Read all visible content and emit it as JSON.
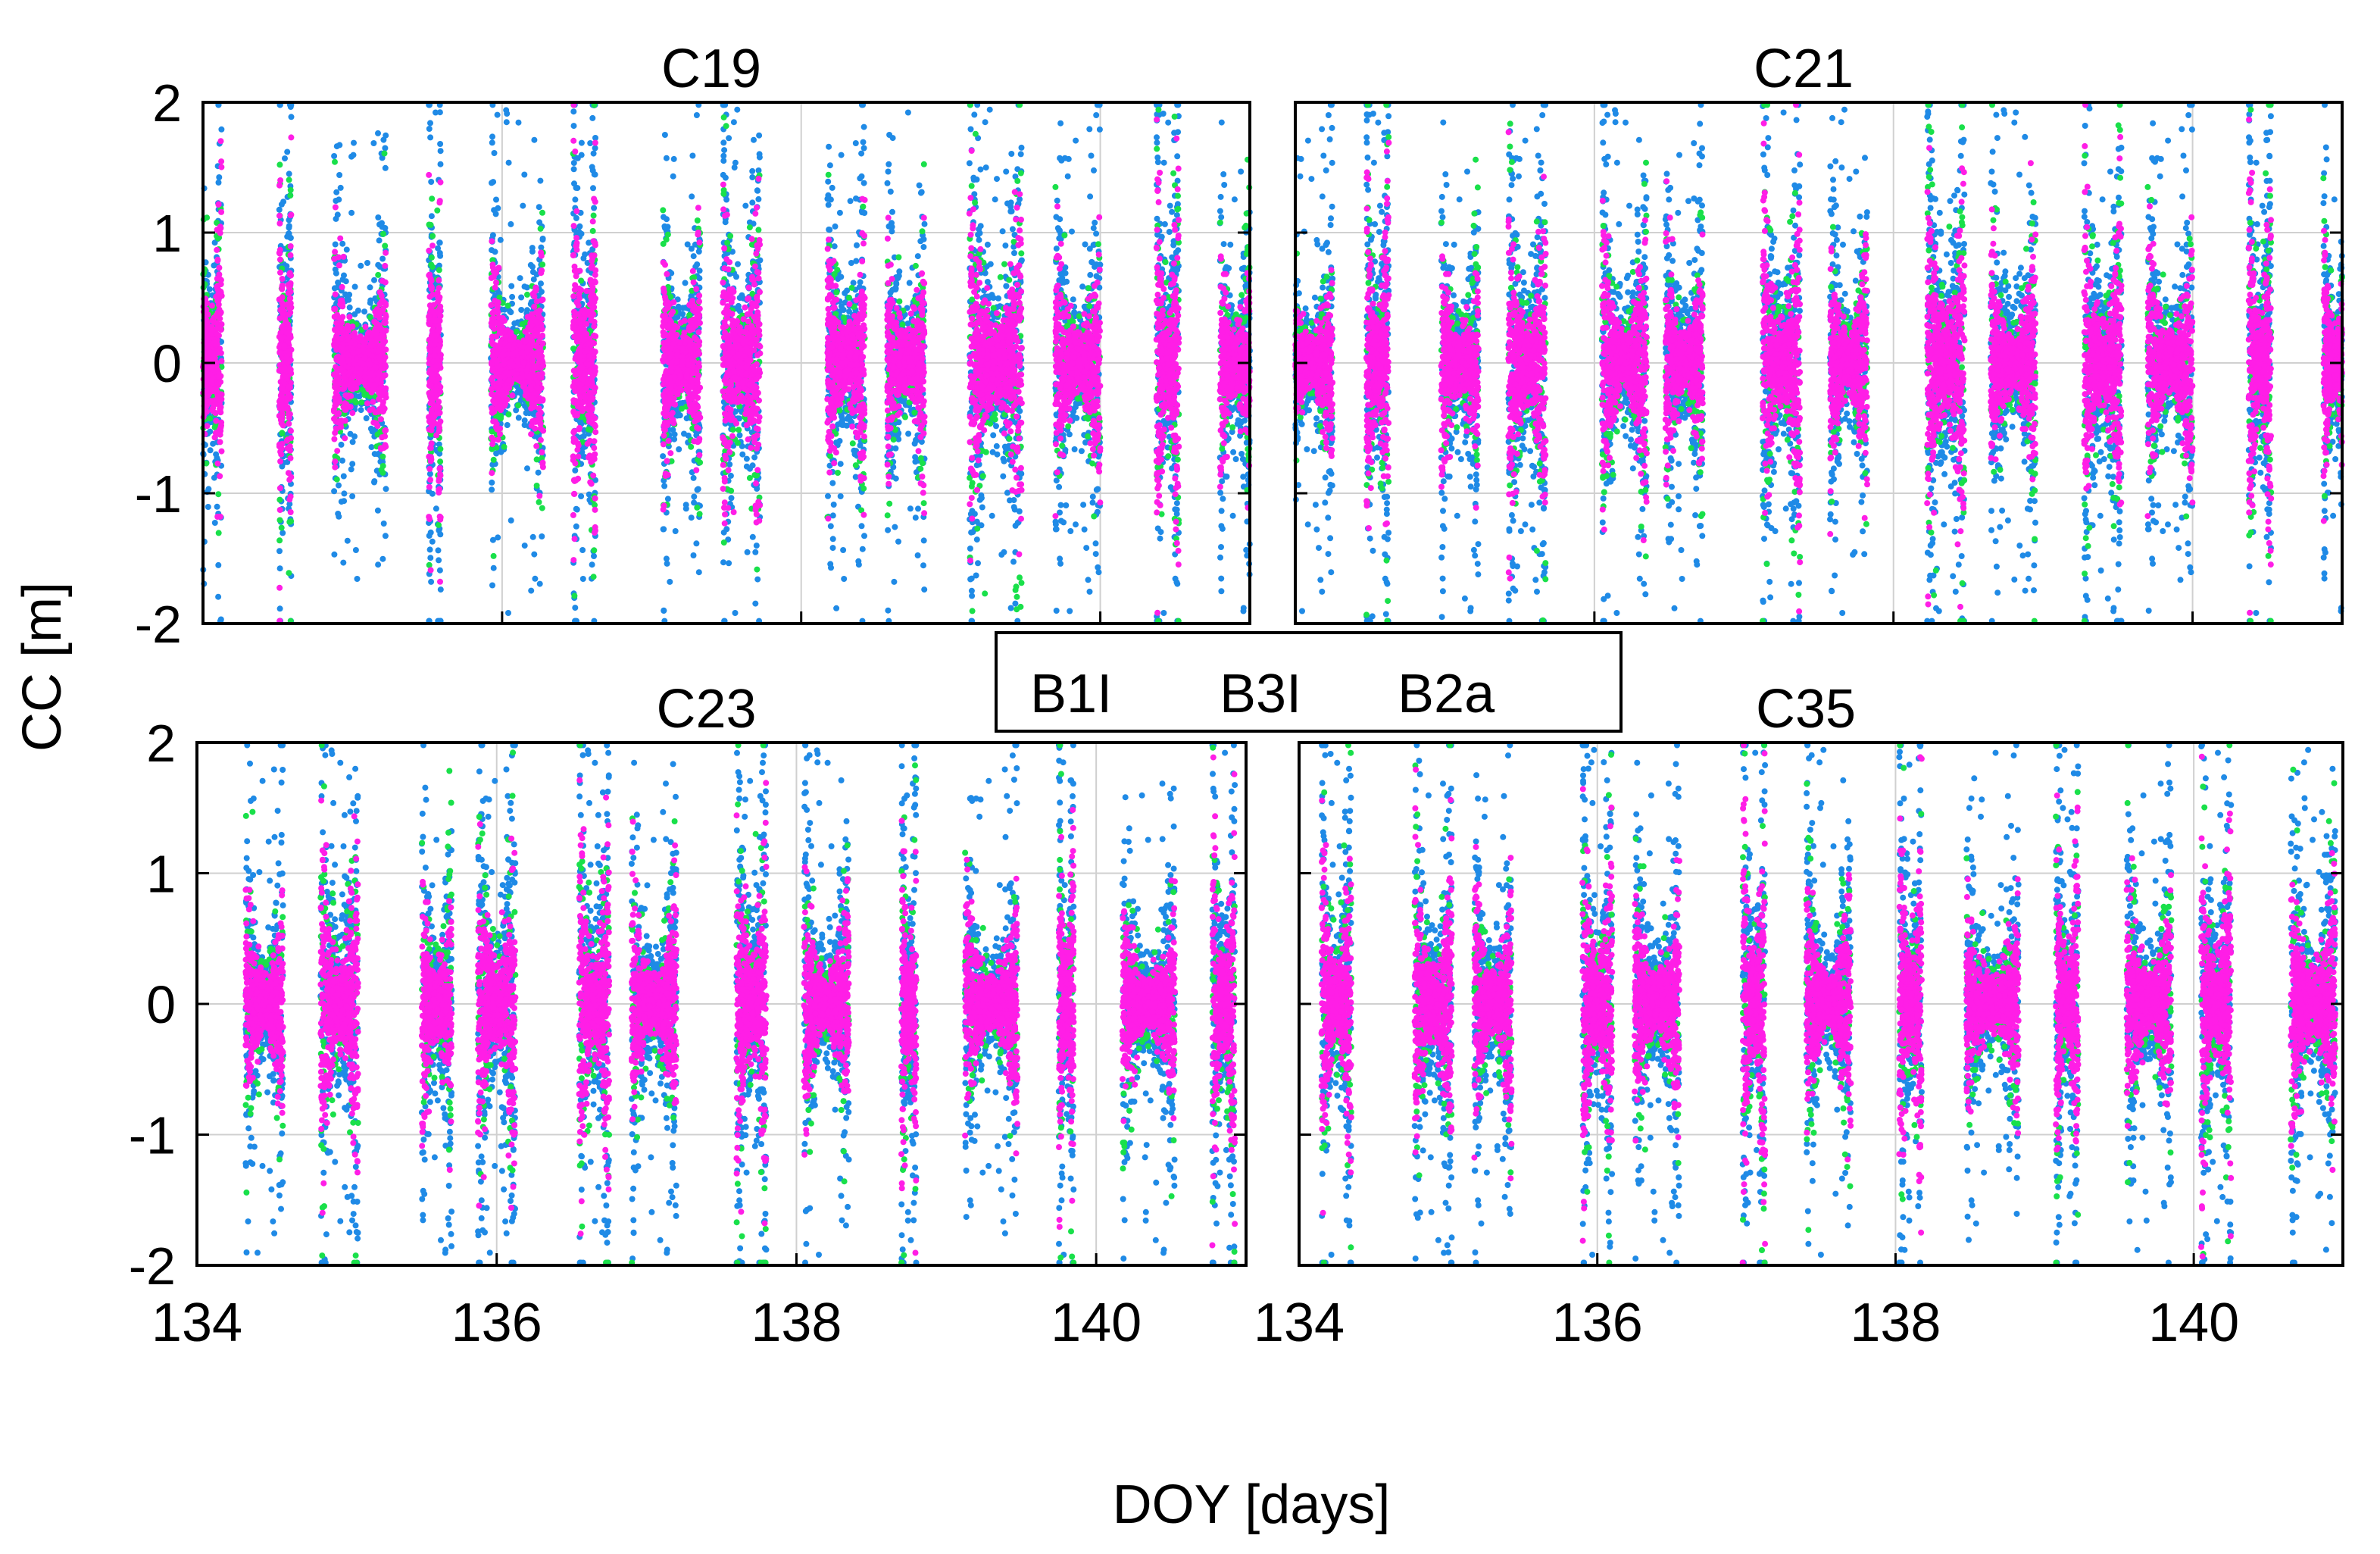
{
  "figure": {
    "ylabel": "CC [m]",
    "xlabel": "DOY [days]"
  },
  "legend": {
    "entries": [
      {
        "label": "B1I",
        "color": "#1f8ae6"
      },
      {
        "label": "B3I",
        "color": "#19e04a"
      },
      {
        "label": "B2a",
        "color": "#ff1ee6"
      }
    ]
  },
  "chart_data": [
    {
      "type": "scatter",
      "title": "C19",
      "xlim": [
        134,
        141
      ],
      "ylim": [
        -2,
        2
      ],
      "xticks": [
        134,
        136,
        138,
        140
      ],
      "yticks": [
        -2,
        -1,
        0,
        1,
        2
      ],
      "grid": true,
      "passes": [
        {
          "center": 134.05,
          "duration": 0.15,
          "spread": 0.55
        },
        {
          "center": 134.55,
          "duration": 0.08,
          "spread": 0.55
        },
        {
          "center": 135.05,
          "duration": 0.35,
          "spread": 0.3
        },
        {
          "center": 135.55,
          "duration": 0.08,
          "spread": 0.6
        },
        {
          "center": 136.1,
          "duration": 0.35,
          "spread": 0.3
        },
        {
          "center": 136.55,
          "duration": 0.15,
          "spread": 0.6
        },
        {
          "center": 137.2,
          "duration": 0.25,
          "spread": 0.35
        },
        {
          "center": 137.6,
          "duration": 0.25,
          "spread": 0.5
        },
        {
          "center": 138.3,
          "duration": 0.25,
          "spread": 0.4
        },
        {
          "center": 138.7,
          "duration": 0.25,
          "spread": 0.35
        },
        {
          "center": 139.3,
          "duration": 0.35,
          "spread": 0.5
        },
        {
          "center": 139.85,
          "duration": 0.3,
          "spread": 0.35
        },
        {
          "center": 140.45,
          "duration": 0.15,
          "spread": 0.6
        },
        {
          "center": 140.9,
          "duration": 0.2,
          "spread": 0.35
        }
      ]
    },
    {
      "type": "scatter",
      "title": "C21",
      "xlim": [
        134,
        141
      ],
      "ylim": [
        -2,
        2
      ],
      "xticks": [
        134,
        136,
        138,
        140
      ],
      "yticks": [
        -2,
        -1,
        0,
        1,
        2
      ],
      "grid": true,
      "passes": [
        {
          "center": 134.1,
          "duration": 0.3,
          "spread": 0.3
        },
        {
          "center": 134.55,
          "duration": 0.15,
          "spread": 0.6
        },
        {
          "center": 135.1,
          "duration": 0.25,
          "spread": 0.35
        },
        {
          "center": 135.55,
          "duration": 0.25,
          "spread": 0.5
        },
        {
          "center": 136.2,
          "duration": 0.3,
          "spread": 0.4
        },
        {
          "center": 136.6,
          "duration": 0.25,
          "spread": 0.35
        },
        {
          "center": 137.25,
          "duration": 0.25,
          "spread": 0.5
        },
        {
          "center": 137.7,
          "duration": 0.25,
          "spread": 0.35
        },
        {
          "center": 138.35,
          "duration": 0.25,
          "spread": 0.6
        },
        {
          "center": 138.8,
          "duration": 0.3,
          "spread": 0.35
        },
        {
          "center": 139.4,
          "duration": 0.25,
          "spread": 0.5
        },
        {
          "center": 139.85,
          "duration": 0.3,
          "spread": 0.35
        },
        {
          "center": 140.45,
          "duration": 0.15,
          "spread": 0.6
        },
        {
          "center": 140.95,
          "duration": 0.15,
          "spread": 0.4
        }
      ]
    },
    {
      "type": "scatter",
      "title": "C23",
      "xlim": [
        134,
        141
      ],
      "ylim": [
        -2,
        2
      ],
      "xticks": [
        134,
        136,
        138,
        140
      ],
      "yticks": [
        -2,
        -1,
        0,
        1,
        2
      ],
      "grid": true,
      "passes": [
        {
          "center": 134.45,
          "duration": 0.25,
          "spread": 0.35
        },
        {
          "center": 134.95,
          "duration": 0.25,
          "spread": 0.5
        },
        {
          "center": 135.6,
          "duration": 0.2,
          "spread": 0.4
        },
        {
          "center": 136.0,
          "duration": 0.25,
          "spread": 0.5
        },
        {
          "center": 136.65,
          "duration": 0.2,
          "spread": 0.55
        },
        {
          "center": 137.05,
          "duration": 0.3,
          "spread": 0.35
        },
        {
          "center": 137.7,
          "duration": 0.2,
          "spread": 0.6
        },
        {
          "center": 138.2,
          "duration": 0.3,
          "spread": 0.35
        },
        {
          "center": 138.75,
          "duration": 0.1,
          "spread": 0.6
        },
        {
          "center": 139.3,
          "duration": 0.35,
          "spread": 0.3
        },
        {
          "center": 139.8,
          "duration": 0.1,
          "spread": 0.6
        },
        {
          "center": 140.35,
          "duration": 0.35,
          "spread": 0.3
        },
        {
          "center": 140.85,
          "duration": 0.15,
          "spread": 0.55
        }
      ]
    },
    {
      "type": "scatter",
      "title": "C35",
      "xlim": [
        134,
        141
      ],
      "ylim": [
        -2,
        2
      ],
      "xticks": [
        134,
        136,
        138,
        140
      ],
      "yticks": [
        -2,
        -1,
        0,
        1,
        2
      ],
      "grid": true,
      "passes": [
        {
          "center": 134.25,
          "duration": 0.2,
          "spread": 0.5
        },
        {
          "center": 134.9,
          "duration": 0.25,
          "spread": 0.45
        },
        {
          "center": 135.3,
          "duration": 0.25,
          "spread": 0.35
        },
        {
          "center": 136.0,
          "duration": 0.2,
          "spread": 0.55
        },
        {
          "center": 136.4,
          "duration": 0.3,
          "spread": 0.35
        },
        {
          "center": 137.05,
          "duration": 0.15,
          "spread": 0.6
        },
        {
          "center": 137.55,
          "duration": 0.3,
          "spread": 0.35
        },
        {
          "center": 138.1,
          "duration": 0.15,
          "spread": 0.6
        },
        {
          "center": 138.65,
          "duration": 0.35,
          "spread": 0.3
        },
        {
          "center": 139.15,
          "duration": 0.15,
          "spread": 0.55
        },
        {
          "center": 139.7,
          "duration": 0.3,
          "spread": 0.35
        },
        {
          "center": 140.15,
          "duration": 0.2,
          "spread": 0.5
        },
        {
          "center": 140.8,
          "duration": 0.3,
          "spread": 0.4
        }
      ]
    }
  ]
}
